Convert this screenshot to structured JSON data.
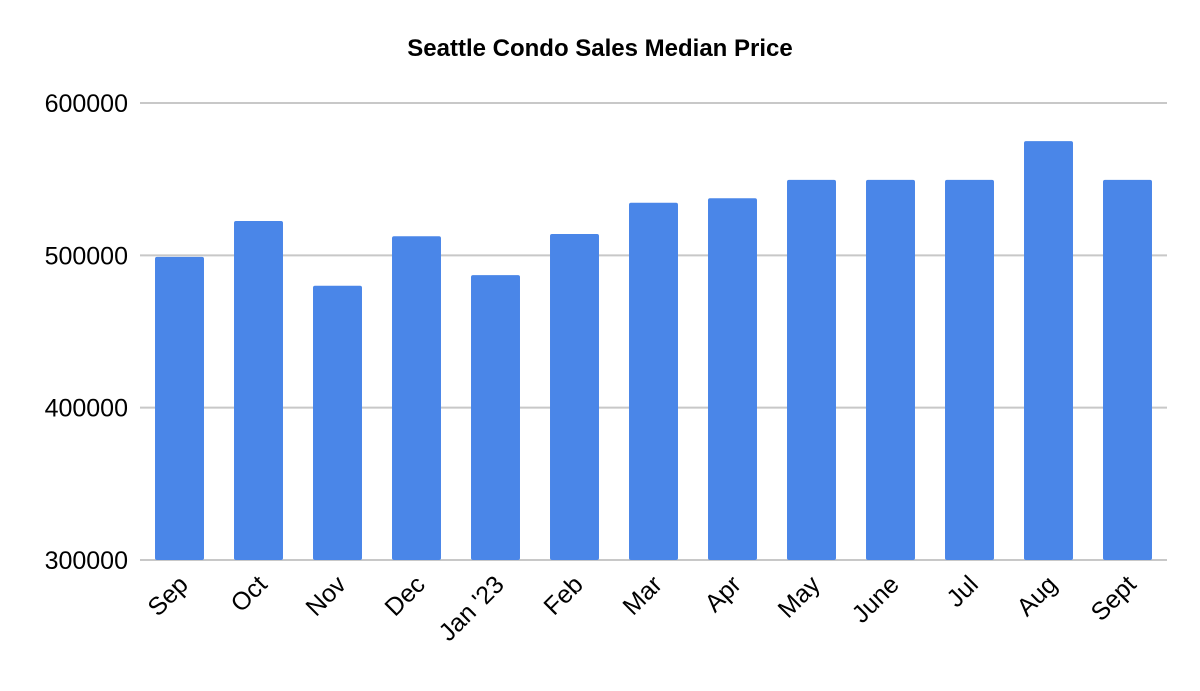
{
  "chart_data": {
    "type": "bar",
    "title": "Seattle Condo Sales Median Price",
    "xlabel": "",
    "ylabel": "",
    "categories": [
      "Sep",
      "Oct",
      "Nov",
      "Dec",
      "Jan '23",
      "Feb",
      "Mar",
      "Apr",
      "May",
      "June",
      "Jul",
      "Aug",
      "Sept"
    ],
    "values": [
      499000,
      522500,
      480000,
      512500,
      487000,
      514000,
      534500,
      537500,
      549500,
      549500,
      549500,
      575000,
      549500
    ],
    "ylim": [
      300000,
      600000
    ],
    "yticks": [
      "300000",
      "400000",
      "500000",
      "600000"
    ],
    "grid": true,
    "legend": "none",
    "bar_color": "#4a86e8"
  }
}
